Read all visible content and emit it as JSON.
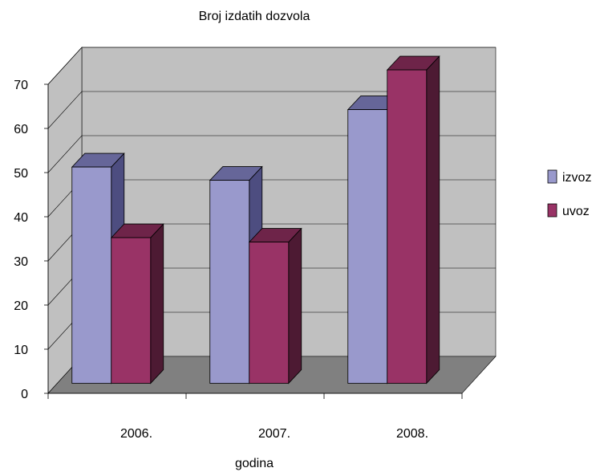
{
  "chart_data": {
    "type": "bar",
    "title": "Broj izdatih dozvola",
    "xlabel": "godina",
    "ylabel": "",
    "categories": [
      "2006.",
      "2007.",
      "2008."
    ],
    "series": [
      {
        "name": "izvoz",
        "values": [
          49,
          46,
          62
        ],
        "color": "#9999CC"
      },
      {
        "name": "uvoz",
        "values": [
          33,
          32,
          71
        ],
        "color": "#993366"
      }
    ],
    "ylim": [
      0,
      70
    ],
    "yticks": [
      0,
      10,
      20,
      30,
      40,
      50,
      60,
      70
    ],
    "grid": true,
    "style": "3d",
    "legend_position": "right",
    "colors": {
      "wall": "#C0C0C0",
      "floor": "#808080",
      "izvoz_top": "#666699",
      "izvoz_side": "#4D4D80",
      "uvoz_top": "#6E2449",
      "uvoz_side": "#4D1A33"
    }
  }
}
